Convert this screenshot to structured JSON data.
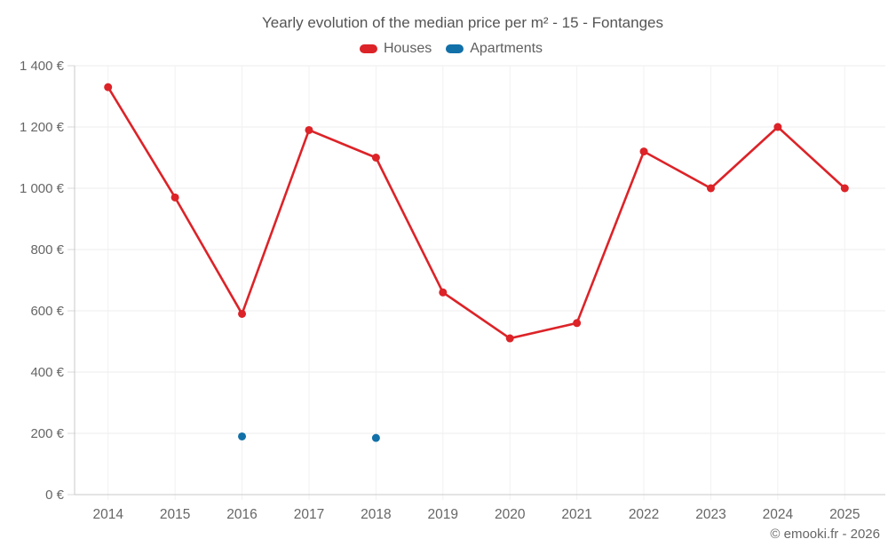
{
  "header": {
    "title": "Yearly evolution of the median price per m² - 15 - Fontanges"
  },
  "footer": {
    "copyright": "© emooki.fr - 2026"
  },
  "chart_data": {
    "type": "line",
    "title": "Yearly evolution of the median price per m² - 15 - Fontanges",
    "categories": [
      "2014",
      "2015",
      "2016",
      "2017",
      "2018",
      "2019",
      "2020",
      "2021",
      "2022",
      "2023",
      "2024",
      "2025"
    ],
    "series": [
      {
        "name": "Houses",
        "color": "#dc2328",
        "values": [
          1330,
          970,
          590,
          1190,
          1100,
          660,
          510,
          560,
          1120,
          1000,
          1200,
          1000
        ]
      },
      {
        "name": "Apartments",
        "color": "#1270a8",
        "values": [
          null,
          null,
          190,
          null,
          185,
          null,
          null,
          null,
          null,
          null,
          null,
          null
        ]
      }
    ],
    "xlabel": "",
    "ylabel": "",
    "ylim": [
      0,
      1400
    ],
    "y_ticks": [
      {
        "value": 0,
        "label": "0 €"
      },
      {
        "value": 200,
        "label": "200 €"
      },
      {
        "value": 400,
        "label": "400 €"
      },
      {
        "value": 600,
        "label": "600 €"
      },
      {
        "value": 800,
        "label": "800 €"
      },
      {
        "value": 1000,
        "label": "1 000 €"
      },
      {
        "value": 1200,
        "label": "1 200 €"
      },
      {
        "value": 1400,
        "label": "1 400 €"
      }
    ],
    "grid": true,
    "legend_position": "top",
    "marker_radius": 4.5,
    "line_width": 2.6,
    "currency_symbol": "€"
  }
}
